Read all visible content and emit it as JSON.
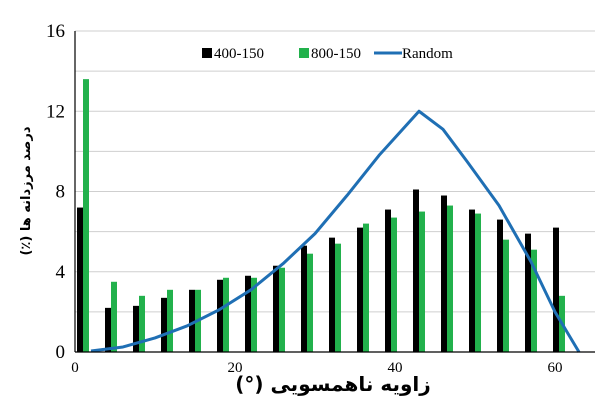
{
  "chart_data": {
    "type": "bar",
    "title": "",
    "xlabel": "زاویه ناهمسویی (°)",
    "ylabel": "درصد مرزدانه ها (٪)",
    "xlim": [
      0,
      65
    ],
    "ylim": [
      0,
      16
    ],
    "xticks": [
      "0",
      "20",
      "40",
      "60"
    ],
    "yticks": [
      "0",
      "4",
      "8",
      "12",
      "16"
    ],
    "grid": "horizontal",
    "legend_position": "top",
    "categories": [
      1,
      4.5,
      8,
      11.5,
      15,
      18.5,
      22,
      25.5,
      29,
      32.5,
      36,
      39.5,
      43,
      46.5,
      50,
      53.5,
      57,
      60.5
    ],
    "series": [
      {
        "name": "400-150",
        "type": "bar",
        "color": "#000000",
        "values": [
          7.2,
          2.2,
          2.3,
          2.7,
          3.1,
          3.6,
          3.8,
          4.3,
          5.3,
          5.7,
          6.2,
          7.1,
          8.1,
          7.8,
          7.1,
          6.6,
          5.9,
          6.2
        ]
      },
      {
        "name": "800-150",
        "type": "bar",
        "color": "#22b14c",
        "values": [
          13.6,
          3.5,
          2.8,
          3.1,
          3.1,
          3.7,
          3.7,
          4.2,
          4.9,
          5.4,
          6.4,
          6.7,
          7.0,
          7.3,
          6.9,
          5.6,
          5.1,
          2.8
        ]
      },
      {
        "name": "Random",
        "type": "line",
        "color": "#1f6fb4",
        "x": [
          2,
          6,
          10,
          14,
          18,
          22,
          26,
          30,
          34,
          38,
          43,
          46,
          49,
          53,
          57,
          60,
          63
        ],
        "values": [
          0.05,
          0.25,
          0.7,
          1.3,
          2.1,
          3.1,
          4.4,
          5.9,
          7.8,
          9.8,
          12.0,
          11.1,
          9.5,
          7.3,
          4.5,
          2.0,
          0.0
        ]
      }
    ]
  }
}
